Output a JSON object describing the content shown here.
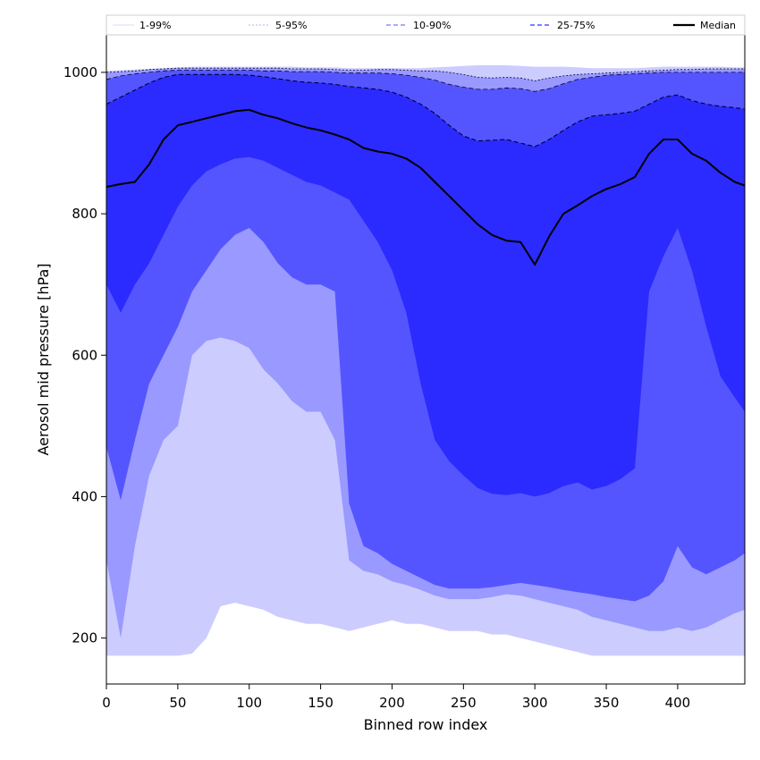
{
  "chart_data": {
    "type": "area",
    "xlabel": "Binned row index",
    "ylabel": "Aerosol mid pressure [hPa]",
    "xlim": [
      0,
      447
    ],
    "ylim": [
      135,
      1053
    ],
    "xticks": [
      0,
      50,
      100,
      150,
      200,
      250,
      300,
      350,
      400
    ],
    "yticks": [
      200,
      400,
      600,
      800,
      1000
    ],
    "grid": false,
    "legend_position": "top",
    "x": [
      0,
      10,
      20,
      30,
      40,
      50,
      60,
      70,
      80,
      90,
      100,
      110,
      120,
      130,
      140,
      150,
      160,
      170,
      180,
      190,
      200,
      210,
      220,
      230,
      240,
      250,
      260,
      270,
      280,
      290,
      300,
      310,
      320,
      330,
      340,
      350,
      360,
      370,
      380,
      390,
      400,
      410,
      420,
      430,
      440,
      447
    ],
    "bands": [
      {
        "name": "1-99%",
        "color": "#ccccff",
        "lower": [
          175,
          175,
          175,
          175,
          175,
          175,
          178,
          200,
          245,
          250,
          245,
          240,
          230,
          225,
          220,
          220,
          215,
          210,
          215,
          220,
          225,
          220,
          220,
          215,
          210,
          210,
          210,
          205,
          205,
          200,
          195,
          190,
          185,
          180,
          175,
          175,
          175,
          175,
          175,
          175,
          175,
          175,
          175,
          175,
          175,
          175
        ],
        "upper": [
          1002,
          1003,
          1004,
          1005,
          1006,
          1007,
          1008,
          1008,
          1008,
          1008,
          1008,
          1008,
          1008,
          1008,
          1007,
          1007,
          1007,
          1006,
          1006,
          1006,
          1006,
          1006,
          1006,
          1007,
          1008,
          1009,
          1010,
          1010,
          1010,
          1009,
          1008,
          1008,
          1008,
          1007,
          1006,
          1006,
          1006,
          1006,
          1007,
          1008,
          1008,
          1008,
          1008,
          1008,
          1007,
          1007
        ]
      },
      {
        "name": "5-95%",
        "color": "#9999ff",
        "lower": [
          310,
          200,
          330,
          430,
          480,
          500,
          600,
          620,
          625,
          620,
          610,
          580,
          560,
          535,
          520,
          520,
          480,
          310,
          295,
          290,
          280,
          275,
          268,
          260,
          255,
          255,
          255,
          258,
          262,
          260,
          255,
          250,
          245,
          240,
          230,
          225,
          220,
          215,
          210,
          210,
          215,
          210,
          215,
          225,
          235,
          240
        ],
        "upper": [
          1000,
          1001,
          1002,
          1004,
          1005,
          1006,
          1006,
          1006,
          1006,
          1006,
          1006,
          1006,
          1006,
          1005,
          1005,
          1005,
          1004,
          1003,
          1003,
          1004,
          1004,
          1003,
          1002,
          1002,
          1000,
          997,
          993,
          992,
          993,
          992,
          988,
          992,
          995,
          997,
          998,
          999,
          1000,
          1001,
          1002,
          1003,
          1004,
          1004,
          1005,
          1005,
          1005,
          1005
        ]
      },
      {
        "name": "10-90%",
        "color": "#5555ff",
        "lower": [
          470,
          395,
          480,
          560,
          600,
          640,
          690,
          720,
          750,
          770,
          780,
          760,
          730,
          710,
          700,
          700,
          690,
          390,
          330,
          320,
          305,
          295,
          285,
          275,
          270,
          270,
          270,
          272,
          275,
          278,
          275,
          272,
          268,
          265,
          262,
          258,
          255,
          252,
          260,
          280,
          330,
          300,
          290,
          300,
          310,
          320
        ],
        "upper": [
          990,
          995,
          998,
          1000,
          1002,
          1003,
          1003,
          1003,
          1003,
          1003,
          1003,
          1002,
          1002,
          1001,
          1001,
          1001,
          1000,
          999,
          999,
          999,
          998,
          996,
          993,
          989,
          983,
          979,
          976,
          976,
          978,
          977,
          973,
          977,
          984,
          990,
          993,
          996,
          997,
          998,
          999,
          1000,
          1000,
          1000,
          1000,
          1000,
          1000,
          1000
        ]
      },
      {
        "name": "25-75%",
        "color": "#2b2bff",
        "lower": [
          700,
          660,
          700,
          730,
          770,
          810,
          840,
          860,
          870,
          878,
          880,
          875,
          865,
          855,
          845,
          840,
          830,
          820,
          790,
          760,
          720,
          660,
          560,
          480,
          450,
          430,
          412,
          404,
          402,
          405,
          400,
          405,
          415,
          420,
          410,
          415,
          425,
          440,
          690,
          740,
          780,
          720,
          640,
          570,
          540,
          520
        ],
        "upper": [
          955,
          965,
          975,
          985,
          993,
          997,
          997,
          997,
          997,
          997,
          996,
          994,
          991,
          988,
          986,
          985,
          983,
          980,
          978,
          976,
          972,
          965,
          955,
          942,
          925,
          910,
          903,
          904,
          905,
          900,
          895,
          905,
          918,
          930,
          938,
          940,
          942,
          945,
          955,
          965,
          968,
          960,
          955,
          952,
          950,
          948
        ]
      }
    ],
    "series": [
      {
        "name": "Median",
        "color": "#000000",
        "values": [
          838,
          842,
          845,
          870,
          905,
          925,
          930,
          935,
          940,
          945,
          947,
          940,
          935,
          928,
          922,
          918,
          912,
          905,
          893,
          888,
          885,
          878,
          865,
          845,
          825,
          805,
          785,
          770,
          762,
          760,
          728,
          768,
          800,
          812,
          825,
          835,
          842,
          852,
          885,
          905,
          905,
          885,
          875,
          858,
          845,
          840
        ]
      }
    ],
    "legend": [
      {
        "label": "1-99%",
        "style": "thin-solid",
        "color": "#ccccff"
      },
      {
        "label": "5-95%",
        "style": "thin-dash",
        "color": "#9999ff"
      },
      {
        "label": "10-90%",
        "style": "dash",
        "color": "#7777ff"
      },
      {
        "label": "25-75%",
        "style": "dash",
        "color": "#3333ff"
      },
      {
        "label": "Median",
        "style": "solid",
        "color": "#000000"
      }
    ]
  }
}
